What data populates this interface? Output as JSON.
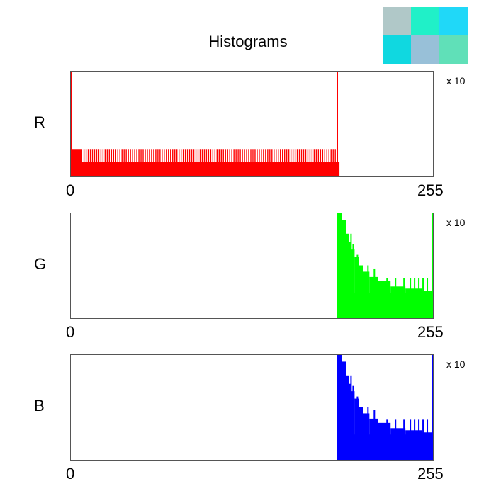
{
  "title": "Histograms",
  "thumbnail": {
    "cells": [
      {
        "color": "#b0c8c8"
      },
      {
        "color": "#20f0c8"
      },
      {
        "color": "#20d8f8"
      },
      {
        "color": "#10d8e0"
      },
      {
        "color": "#98c0d8"
      },
      {
        "color": "#60e0b8"
      }
    ]
  },
  "chart_data": [
    {
      "type": "bar",
      "channel": "R",
      "color": "#ff0000",
      "multiplier_label": "x 10",
      "xlim": [
        0,
        255
      ],
      "x_ticks": [
        "0",
        "255"
      ],
      "base_level": 0.14,
      "spike_level": 0.26,
      "spike_x": [
        1,
        2,
        3,
        4,
        5,
        6,
        7,
        8,
        9,
        10,
        12,
        14,
        16,
        18,
        20,
        22,
        24,
        26,
        28,
        30,
        32,
        34,
        36,
        38,
        40,
        42,
        44,
        46,
        48,
        50,
        52,
        54,
        56,
        58,
        60,
        62,
        64,
        66,
        68,
        70,
        72,
        74,
        76,
        78,
        80,
        82,
        84,
        86,
        88,
        90,
        92,
        94,
        96,
        98,
        100,
        102,
        104,
        106,
        108,
        110,
        112,
        114,
        116,
        118,
        120,
        122,
        124,
        126,
        128,
        130,
        132,
        134,
        136,
        138,
        140,
        142,
        144,
        146,
        148,
        150,
        152,
        154,
        156,
        158,
        160,
        162,
        164,
        166,
        168,
        170,
        172,
        174,
        176,
        178,
        180,
        182,
        184,
        186,
        188,
        190,
        192,
        194,
        196,
        198,
        200,
        202,
        204,
        206,
        208,
        210,
        212,
        214,
        216,
        218,
        220,
        222,
        224,
        226,
        228,
        230,
        232,
        234,
        236,
        238,
        240,
        242,
        244,
        246,
        248,
        250,
        252,
        254
      ],
      "ceiling_x": [
        0,
        248
      ],
      "range": [
        0,
        252
      ]
    },
    {
      "type": "bar",
      "channel": "G",
      "color": "#00ff00",
      "multiplier_label": "x 10",
      "xlim": [
        0,
        255
      ],
      "x_ticks": [
        "0",
        "255"
      ],
      "range": [
        249,
        255
      ],
      "floor_level": 0.24,
      "profile": [
        {
          "x": 249,
          "v": 1.0
        },
        {
          "x": 254,
          "v": 0.93
        },
        {
          "x": 258,
          "v": 0.8
        },
        {
          "x": 261,
          "v": 0.72
        },
        {
          "x": 263,
          "v": 0.65
        },
        {
          "x": 266,
          "v": 0.58
        },
        {
          "x": 270,
          "v": 0.5
        },
        {
          "x": 274,
          "v": 0.44
        },
        {
          "x": 280,
          "v": 0.39
        },
        {
          "x": 288,
          "v": 0.35
        },
        {
          "x": 300,
          "v": 0.3
        },
        {
          "x": 314,
          "v": 0.28
        },
        {
          "x": 330,
          "v": 0.26
        },
        {
          "x": 340,
          "v": 0.24
        }
      ],
      "spike_x": [
        262,
        264,
        268,
        272,
        278,
        284,
        296,
        304,
        312,
        318,
        322,
        326,
        330,
        334
      ],
      "spike_v": [
        0.8,
        0.7,
        0.6,
        0.5,
        0.5,
        0.47,
        0.38,
        0.38,
        0.38,
        0.38,
        0.38,
        0.38,
        0.38,
        0.38
      ],
      "ceiling_x": [
        339
      ]
    },
    {
      "type": "bar",
      "channel": "B",
      "color": "#0000ff",
      "multiplier_label": "x 10",
      "xlim": [
        0,
        255
      ],
      "x_ticks": [
        "0",
        "255"
      ],
      "range": [
        249,
        255
      ],
      "floor_level": 0.24,
      "profile": [
        {
          "x": 249,
          "v": 1.0
        },
        {
          "x": 254,
          "v": 0.93
        },
        {
          "x": 258,
          "v": 0.8
        },
        {
          "x": 261,
          "v": 0.72
        },
        {
          "x": 263,
          "v": 0.65
        },
        {
          "x": 266,
          "v": 0.58
        },
        {
          "x": 270,
          "v": 0.5
        },
        {
          "x": 274,
          "v": 0.44
        },
        {
          "x": 280,
          "v": 0.39
        },
        {
          "x": 288,
          "v": 0.35
        },
        {
          "x": 300,
          "v": 0.3
        },
        {
          "x": 314,
          "v": 0.28
        },
        {
          "x": 330,
          "v": 0.26
        },
        {
          "x": 340,
          "v": 0.24
        }
      ],
      "spike_x": [
        262,
        264,
        268,
        272,
        278,
        284,
        296,
        304,
        312,
        318,
        322,
        326,
        330,
        334
      ],
      "spike_v": [
        0.8,
        0.7,
        0.6,
        0.5,
        0.5,
        0.47,
        0.38,
        0.38,
        0.38,
        0.38,
        0.38,
        0.38,
        0.38,
        0.38
      ],
      "ceiling_x": [
        339
      ]
    }
  ]
}
